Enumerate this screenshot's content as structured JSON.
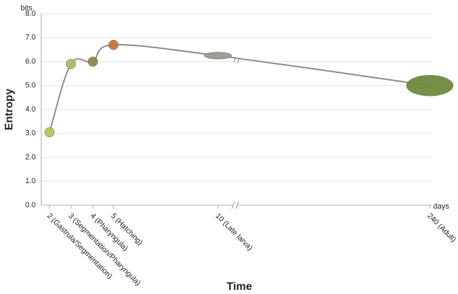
{
  "chart_data": {
    "type": "line",
    "x_label": "Time",
    "y_label": "Entropy",
    "y_unit": "bits",
    "x_unit": "days",
    "categories": [
      "2 (Gastrula/Segmentation)",
      "3 (Segmentation/Pharyngula)",
      "4 (Pharyngula)",
      "5 (Hatching)",
      "10 (Late larva)",
      "240 (Adult)"
    ],
    "series": [
      {
        "name": "Entropy",
        "color": "#8a8a8a",
        "values": [
          3.05,
          5.9,
          6.0,
          6.7,
          6.25,
          5.0
        ]
      }
    ],
    "marker_colors": [
      "#b9c25a",
      "#a9bf5c",
      "#8f8a48",
      "#c8743e",
      "#9a9a92",
      "#6f8a3e"
    ],
    "ylim": [
      0,
      8
    ],
    "yticks": [
      {
        "value": 0,
        "label": "0.0"
      },
      {
        "value": 1,
        "label": "1.0"
      },
      {
        "value": 2,
        "label": "2.0"
      },
      {
        "value": 3,
        "label": "3.0"
      },
      {
        "value": 4,
        "label": "4.0"
      },
      {
        "value": 5,
        "label": "5.0"
      },
      {
        "value": 6,
        "label": "6.0"
      },
      {
        "value": 7,
        "label": "7.0"
      },
      {
        "value": 8,
        "label": "8.0"
      }
    ],
    "grid": true
  }
}
